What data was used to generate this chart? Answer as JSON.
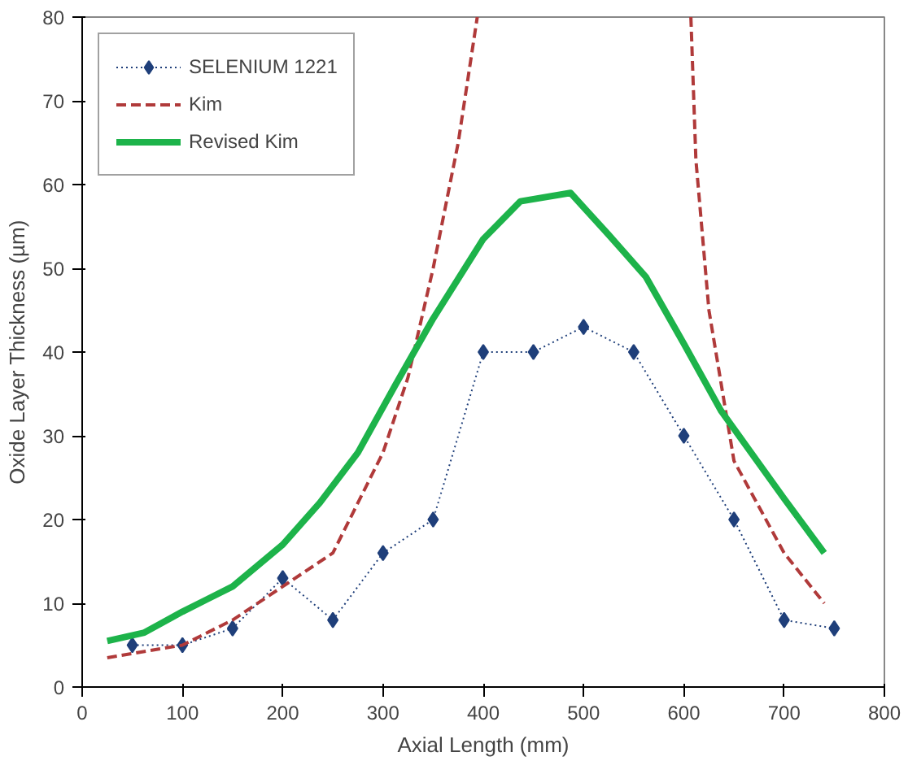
{
  "chart_data": {
    "type": "line",
    "xlabel": "Axial Length (mm)",
    "ylabel": "Oxide Layer Thickness (µm)",
    "xlim": [
      0,
      800
    ],
    "xticks": [
      0,
      100,
      200,
      300,
      400,
      500,
      600,
      700,
      800
    ],
    "ylim": [
      0,
      80
    ],
    "yticks": [
      0,
      10,
      20,
      30,
      40,
      50,
      60,
      70,
      80
    ],
    "grid": false,
    "legend": "top left",
    "series": [
      {
        "name": "SELENIUM 1221",
        "color": "#1f3f7a",
        "marker": "diamond",
        "line_style": "dotted",
        "x": [
          50,
          100,
          150,
          200,
          250,
          300,
          350,
          400,
          450,
          500,
          550,
          600,
          650,
          700,
          750
        ],
        "values": [
          5,
          5,
          7,
          13,
          8,
          16,
          20,
          40,
          40,
          43,
          40,
          30,
          20,
          8,
          7
        ]
      },
      {
        "name": "Kim",
        "color": "#b03a3a",
        "marker": "none",
        "line_style": "dashed",
        "x": [
          25,
          100,
          150,
          200,
          250,
          275,
          300,
          325,
          350,
          375,
          394,
          500,
          607,
          612,
          625,
          650,
          700,
          740
        ],
        "values": [
          3.5,
          5,
          8,
          12,
          16,
          22,
          28,
          37,
          50,
          65,
          80,
          null,
          80,
          63,
          45,
          27,
          16,
          10
        ]
      },
      {
        "name": "Revised Kim",
        "color": "#1db34a",
        "marker": "none",
        "line_style": "solid",
        "x": [
          25,
          62,
          100,
          150,
          200,
          237,
          275,
          312,
          350,
          400,
          437,
          487,
          525,
          562,
          600,
          637,
          700,
          740
        ],
        "values": [
          5.5,
          6.5,
          9,
          12,
          17,
          22,
          28,
          36,
          44,
          53.5,
          58,
          59,
          54,
          49,
          41,
          33,
          22.5,
          16
        ]
      }
    ]
  }
}
